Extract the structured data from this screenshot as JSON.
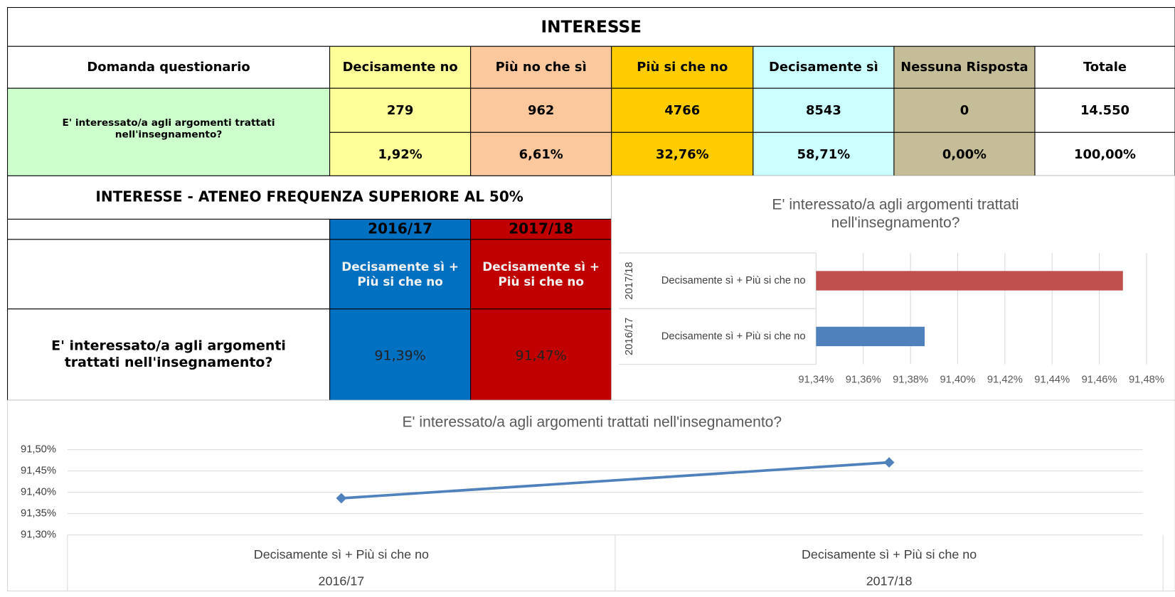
{
  "interest_table": {
    "title": "INTERESSE",
    "headers": [
      "Domanda questionario",
      "Decisamente no",
      "Più no che sì",
      "Più si che no",
      "Decisamente sì",
      "Nessuna Risposta",
      "Totale"
    ],
    "question": "E' interessato/a agli argomenti trattati nell'insegnamento?",
    "counts": [
      "279",
      "962",
      "4766",
      "8543",
      "0",
      "14.550"
    ],
    "percentages": [
      "1,92%",
      "6,61%",
      "32,76%",
      "58,71%",
      "0,00%",
      "100,00%"
    ]
  },
  "frequency_table": {
    "title": "INTERESSE - ATENEO FREQUENZA SUPERIORE AL 50%",
    "years": [
      "2016/17",
      "2017/18"
    ],
    "answers": [
      "Decisamente sì + Più si che no",
      "Decisamente sì + Più si che no"
    ],
    "question": "E' interessato/a agli argomenti trattati nell'insegnamento?",
    "values": [
      "91,39%",
      "91,47%"
    ]
  },
  "chart_data": [
    {
      "type": "bar",
      "orientation": "horizontal",
      "title": "E' interessato/a agli argomenti trattati nell'insegnamento?",
      "categories": [
        "Decisamente sì + Più si che no",
        "Decisamente sì + Più si che no"
      ],
      "groups": [
        "2016/17",
        "2017/18"
      ],
      "values": [
        91.386,
        91.47
      ],
      "colors": [
        "#4f81bd",
        "#c0504d"
      ],
      "xlim": [
        91.34,
        91.48
      ],
      "xticks": [
        {
          "value": 91.34,
          "label": "91,34%"
        },
        {
          "value": 91.36,
          "label": "91,36%"
        },
        {
          "value": 91.38,
          "label": "91,38%"
        },
        {
          "value": 91.4,
          "label": "91,40%"
        },
        {
          "value": 91.42,
          "label": "91,42%"
        },
        {
          "value": 91.44,
          "label": "91,44%"
        },
        {
          "value": 91.46,
          "label": "91,46%"
        },
        {
          "value": 91.48,
          "label": "91,48%"
        }
      ],
      "grid": true
    },
    {
      "type": "line",
      "title": "E' interessato/a agli argomenti trattati nell'insegnamento?",
      "categories": [
        "Decisamente sì + Più si che no",
        "Decisamente sì + Più si che no"
      ],
      "groups": [
        "2016/17",
        "2017/18"
      ],
      "values": [
        91.386,
        91.47
      ],
      "color": "#4f81bd",
      "ylim": [
        91.3,
        91.5
      ],
      "yticks": [
        {
          "value": 91.3,
          "label": "91,30%"
        },
        {
          "value": 91.35,
          "label": "91,35%"
        },
        {
          "value": 91.4,
          "label": "91,40%"
        },
        {
          "value": 91.45,
          "label": "91,45%"
        },
        {
          "value": 91.5,
          "label": "91,50%"
        }
      ],
      "grid": true
    }
  ]
}
